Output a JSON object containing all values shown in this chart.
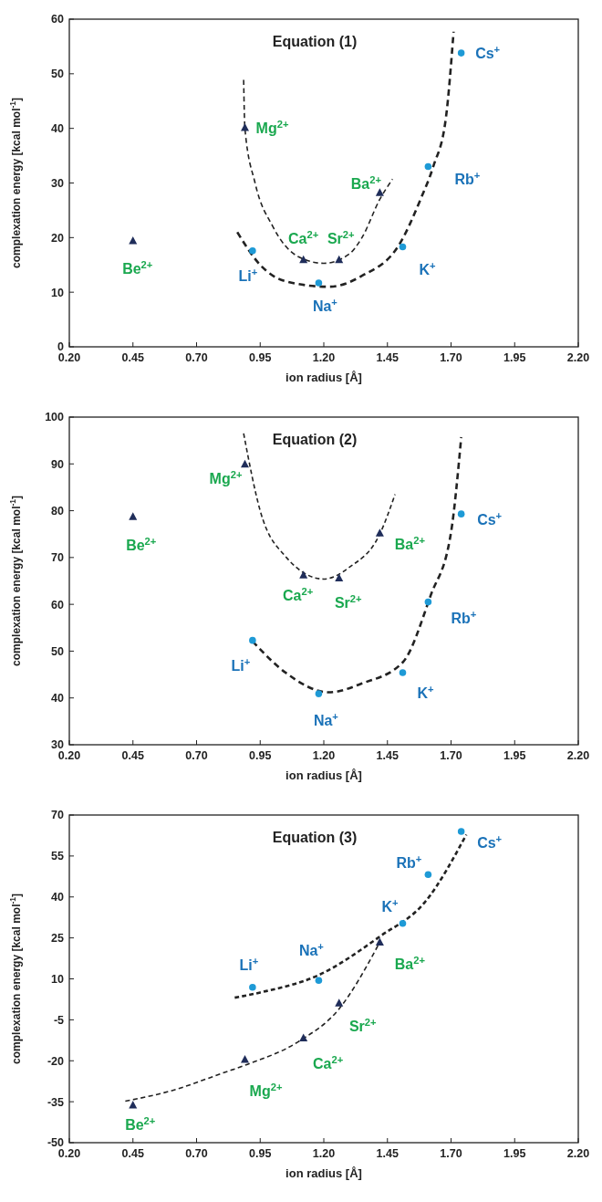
{
  "chart_data": [
    {
      "type": "scatter",
      "title": "Equation (1)",
      "xlabel": "ion radius [Å]",
      "ylabel": "complexation energy [kcal mol$^{-1}$]",
      "xlim": [
        0.2,
        2.2
      ],
      "xticks": [
        {
          "value": 0.2,
          "label": "0.20"
        },
        {
          "value": 0.45,
          "label": "0.45"
        },
        {
          "value": 0.7,
          "label": "0.70"
        },
        {
          "value": 0.95,
          "label": "0.95"
        },
        {
          "value": 1.2,
          "label": "1.20"
        },
        {
          "value": 1.45,
          "label": "1.45"
        },
        {
          "value": 1.7,
          "label": "1.70"
        },
        {
          "value": 1.95,
          "label": "1.95"
        },
        {
          "value": 2.2,
          "label": "2.20"
        }
      ],
      "ylim": [
        0,
        60
      ],
      "yticks": [
        0,
        10,
        20,
        30,
        40,
        50,
        60
      ],
      "grid": false,
      "series": [
        {
          "type": "scatter",
          "marker": "triangle",
          "color": "#1f2d5a",
          "x": [
            0.45,
            0.89,
            1.12,
            1.26,
            1.42
          ],
          "values": [
            19.4,
            40.1,
            15.9,
            15.9,
            28.2
          ]
        },
        {
          "type": "scatter",
          "marker": "circle",
          "color": "#1e9ad6",
          "x": [
            0.92,
            1.18,
            1.51,
            1.61,
            1.74
          ],
          "values": [
            17.6,
            11.7,
            18.3,
            33.0,
            53.8
          ]
        },
        {
          "type": "line",
          "line_style": "dashed",
          "color": "#222222",
          "x": [
            0.885,
            0.89,
            0.93,
            1.0,
            1.1,
            1.2,
            1.3,
            1.35,
            1.42,
            1.47
          ],
          "values": [
            48.9,
            40,
            30,
            22,
            16.5,
            15.3,
            17,
            20,
            27,
            30.7
          ]
        },
        {
          "type": "line",
          "line_style": "dashed",
          "color": "#222222",
          "x": [
            0.86,
            0.95,
            1.05,
            1.22,
            1.35,
            1.5,
            1.58,
            1.63,
            1.68,
            1.71
          ],
          "values": [
            21,
            15,
            12,
            11,
            13,
            19,
            27,
            33,
            42,
            57.7
          ]
        }
      ],
      "annotations": [
        {
          "text": "Be$^{2+}$",
          "x": 0.45,
          "y": 19.4
        },
        {
          "text": "Mg$^{2+}$",
          "x": 0.89,
          "y": 40.1
        },
        {
          "text": "Ca$^{2+}$",
          "x": 1.12,
          "y": 15.9
        },
        {
          "text": "Sr$^{2+}$",
          "x": 1.26,
          "y": 15.9
        },
        {
          "text": "Ba$^{2+}$",
          "x": 1.42,
          "y": 28.2
        },
        {
          "text": "Li$^{+}$",
          "x": 0.92,
          "y": 17.6
        },
        {
          "text": "Na$^{+}$",
          "x": 1.18,
          "y": 11.7
        },
        {
          "text": "K$^{+}$",
          "x": 1.51,
          "y": 18.3
        },
        {
          "text": "Rb$^{+}$",
          "x": 1.61,
          "y": 33.0
        },
        {
          "text": "Cs$^{+}$",
          "x": 1.74,
          "y": 53.8
        }
      ]
    },
    {
      "type": "scatter",
      "title": "Equation (2)",
      "xlabel": "ion radius [Å]",
      "ylabel": "complexation energy [kcal mol$^{-1}$]",
      "xlim": [
        0.2,
        2.2
      ],
      "xticks": [
        {
          "value": 0.2,
          "label": "0.20"
        },
        {
          "value": 0.45,
          "label": "0.45"
        },
        {
          "value": 0.7,
          "label": "0.70"
        },
        {
          "value": 0.95,
          "label": "0.95"
        },
        {
          "value": 1.2,
          "label": "1.20"
        },
        {
          "value": 1.45,
          "label": "1.45"
        },
        {
          "value": 1.7,
          "label": "1.70"
        },
        {
          "value": 1.95,
          "label": "1.95"
        },
        {
          "value": 2.2,
          "label": "2.20"
        }
      ],
      "ylim": [
        30,
        100
      ],
      "yticks": [
        30,
        40,
        50,
        60,
        70,
        80,
        90,
        100
      ],
      "grid": false,
      "series": [
        {
          "type": "scatter",
          "marker": "triangle",
          "color": "#1f2d5a",
          "x": [
            0.45,
            0.89,
            1.12,
            1.26,
            1.42
          ],
          "values": [
            78.7,
            89.9,
            66.2,
            65.6,
            75.2
          ]
        },
        {
          "type": "scatter",
          "marker": "circle",
          "color": "#1e9ad6",
          "x": [
            0.92,
            1.18,
            1.51,
            1.61,
            1.74
          ],
          "values": [
            52.3,
            40.9,
            45.4,
            60.5,
            79.3
          ]
        },
        {
          "type": "line",
          "line_style": "dashed",
          "color": "#222222",
          "x": [
            0.885,
            0.95,
            1.05,
            1.2,
            1.3,
            1.42,
            1.48
          ],
          "values": [
            96.5,
            80,
            70.2,
            65.4,
            67.9,
            75,
            83.5
          ]
        },
        {
          "type": "line",
          "line_style": "dashed",
          "color": "#222222",
          "x": [
            0.92,
            1.05,
            1.22,
            1.35,
            1.51,
            1.62,
            1.7,
            1.74
          ],
          "values": [
            52.1,
            45.4,
            41.2,
            43.1,
            47.6,
            61.9,
            75.4,
            95.7
          ]
        }
      ],
      "annotations": [
        {
          "text": "Be$^{2+}$",
          "x": 0.45,
          "y": 78.7
        },
        {
          "text": "Mg$^{2+}$",
          "x": 0.89,
          "y": 89.9
        },
        {
          "text": "Ca$^{2+}$",
          "x": 1.12,
          "y": 66.2
        },
        {
          "text": "Sr$^{2+}$",
          "x": 1.26,
          "y": 65.6
        },
        {
          "text": "Ba$^{2+}$",
          "x": 1.42,
          "y": 75.2
        },
        {
          "text": "Li$^{+}$",
          "x": 0.92,
          "y": 52.3
        },
        {
          "text": "Na$^{+}$",
          "x": 1.18,
          "y": 40.9
        },
        {
          "text": "K$^{+}$",
          "x": 1.51,
          "y": 45.4
        },
        {
          "text": "Rb$^{+}$",
          "x": 1.61,
          "y": 60.5
        },
        {
          "text": "Cs$^{+}$",
          "x": 1.74,
          "y": 79.3
        }
      ]
    },
    {
      "type": "scatter",
      "title": "Equation (3)",
      "xlabel": "ion radius [Å]",
      "ylabel": "complexation energy [kcal mol$^{-1}$]",
      "xlim": [
        0.2,
        2.2
      ],
      "xticks": [
        {
          "value": 0.2,
          "label": "0.20"
        },
        {
          "value": 0.45,
          "label": "0.45"
        },
        {
          "value": 0.7,
          "label": "0.70"
        },
        {
          "value": 0.95,
          "label": "0.95"
        },
        {
          "value": 1.2,
          "label": "1.20"
        },
        {
          "value": 1.45,
          "label": "1.45"
        },
        {
          "value": 1.7,
          "label": "1.70"
        },
        {
          "value": 1.95,
          "label": "1.95"
        },
        {
          "value": 2.2,
          "label": "2.20"
        }
      ],
      "ylim": [
        -50,
        70
      ],
      "yticks": [
        -50,
        -35,
        -20,
        -5,
        10,
        25,
        40,
        55,
        70
      ],
      "grid": false,
      "series": [
        {
          "type": "scatter",
          "marker": "triangle",
          "color": "#1f2d5a",
          "x": [
            0.45,
            0.89,
            1.12,
            1.26,
            1.42
          ],
          "values": [
            -36.3,
            -19.6,
            -11.7,
            1.1,
            23.4
          ]
        },
        {
          "type": "scatter",
          "marker": "circle",
          "color": "#1e9ad6",
          "x": [
            0.92,
            1.18,
            1.51,
            1.61,
            1.74
          ],
          "values": [
            6.9,
            9.4,
            30.3,
            48.2,
            64.0
          ]
        },
        {
          "type": "line",
          "line_style": "dashed",
          "color": "#222222",
          "x": [
            0.42,
            0.6,
            0.8,
            0.9,
            1.1,
            1.26,
            1.42
          ],
          "values": [
            -34.8,
            -31.0,
            -24.6,
            -21.3,
            -13,
            -1,
            23.4
          ]
        },
        {
          "type": "line",
          "line_style": "dashed",
          "color": "#222222",
          "x": [
            0.85,
            0.95,
            1.18,
            1.42,
            1.6,
            1.76
          ],
          "values": [
            3.1,
            5.0,
            11.4,
            25.5,
            38.4,
            62.8
          ]
        }
      ],
      "annotations": [
        {
          "text": "Be$^{2+}$",
          "x": 0.45,
          "y": -36.3
        },
        {
          "text": "Mg$^{2+}$",
          "x": 0.89,
          "y": -19.6
        },
        {
          "text": "Ca$^{2+}$",
          "x": 1.12,
          "y": -11.7
        },
        {
          "text": "Sr$^{2+}$",
          "x": 1.26,
          "y": 1.1
        },
        {
          "text": "Ba$^{2+}$",
          "x": 1.42,
          "y": 23.4
        },
        {
          "text": "Li$^{+}$",
          "x": 0.92,
          "y": 6.9
        },
        {
          "text": "Na$^{+}$",
          "x": 1.18,
          "y": 9.4
        },
        {
          "text": "K$^{+}$",
          "x": 1.51,
          "y": 30.3
        },
        {
          "text": "Rb$^{+}$",
          "x": 1.61,
          "y": 48.2
        },
        {
          "text": "Cs$^{+}$",
          "x": 1.74,
          "y": 64.0
        }
      ]
    }
  ]
}
